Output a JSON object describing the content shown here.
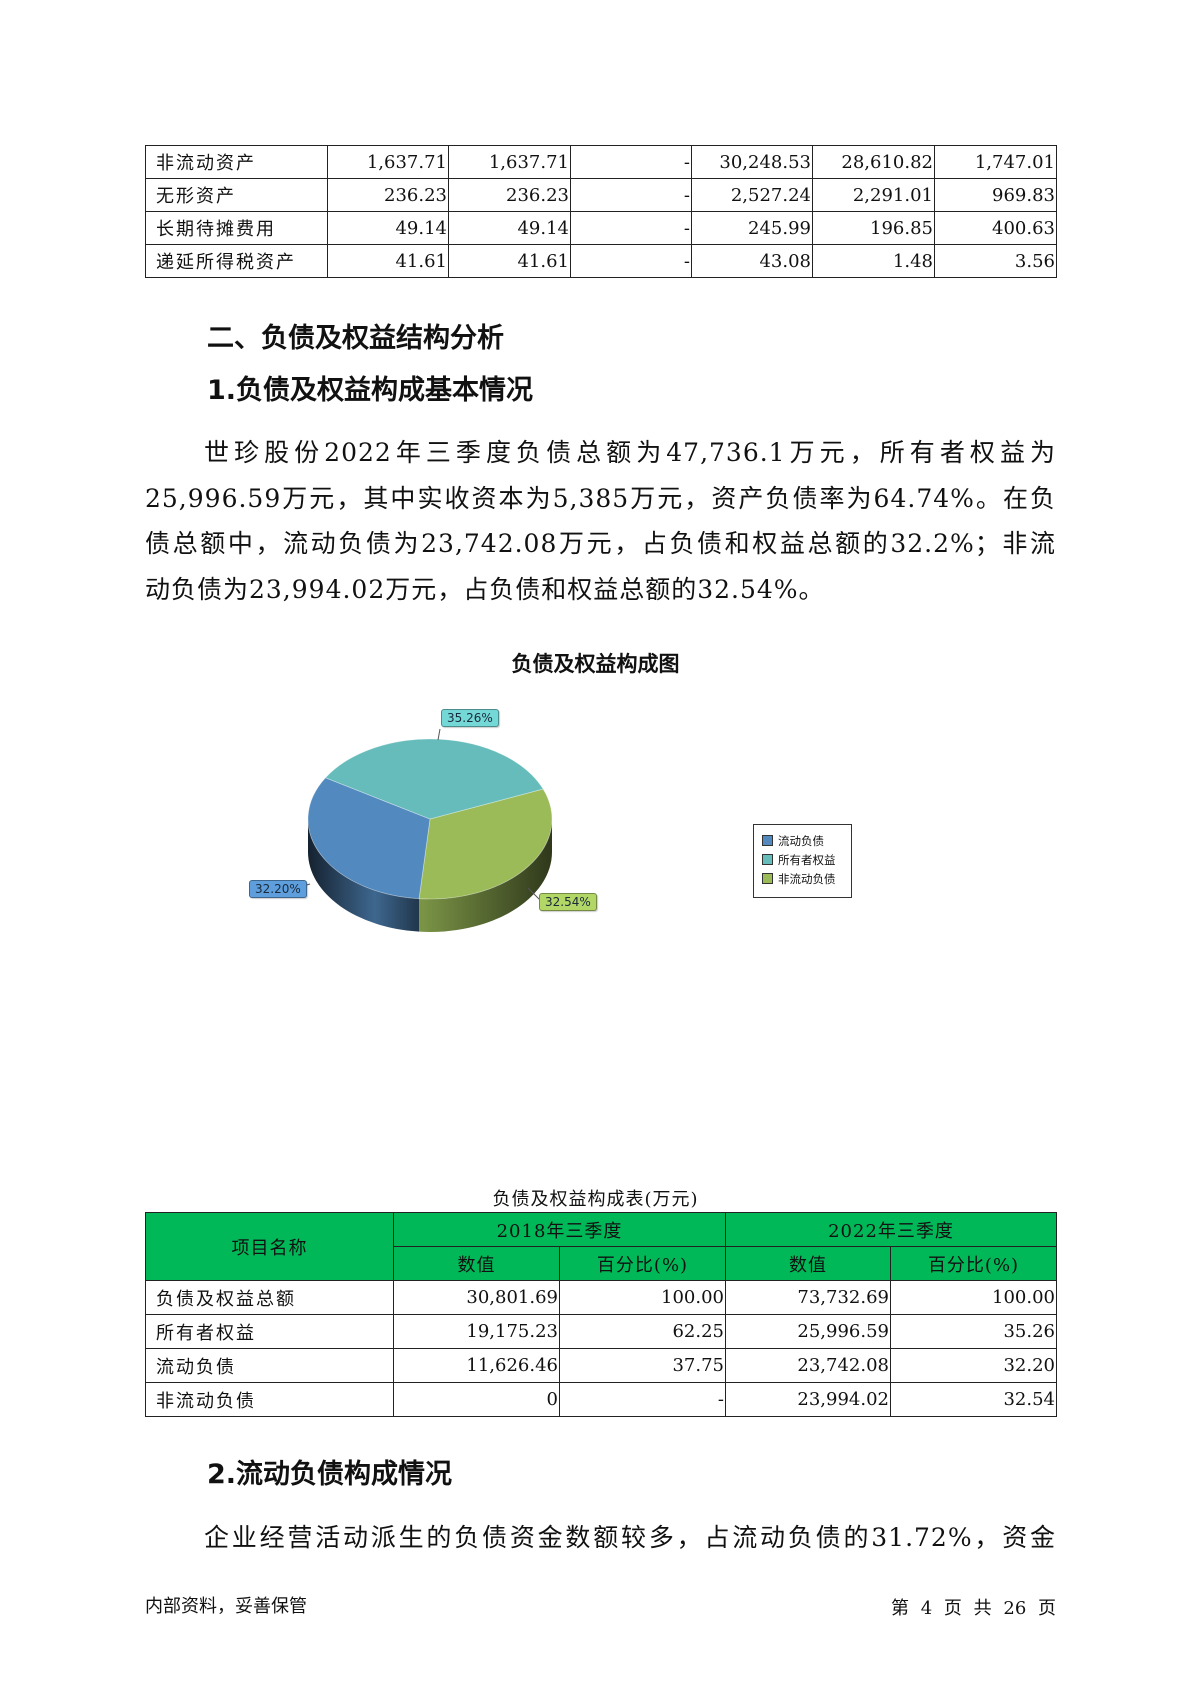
{
  "asset_table": {
    "rows": [
      {
        "name": "非流动资产",
        "values": [
          "1,637.71",
          "1,637.71",
          "-",
          "30,248.53",
          "28,610.82",
          "1,747.01"
        ]
      },
      {
        "name": "无形资产",
        "values": [
          "236.23",
          "236.23",
          "-",
          "2,527.24",
          "2,291.01",
          "969.83"
        ]
      },
      {
        "name": "长期待摊费用",
        "values": [
          "49.14",
          "49.14",
          "-",
          "245.99",
          "196.85",
          "400.63"
        ]
      },
      {
        "name": "递延所得税资产",
        "values": [
          "41.61",
          "41.61",
          "-",
          "43.08",
          "1.48",
          "3.56"
        ]
      }
    ]
  },
  "section_heading": "二、负债及权益结构分析",
  "sub_heading_1": "1.负债及权益构成基本情况",
  "paragraph_1_lines": [
    "世珍股份2022年三季度负债总额为47,736.1万元，所有者权益为",
    "25,996.59万元，其中实收资本为5,385万元，资产负债率为64.74%。在负",
    "债总额中，流动负债为23,742.08万元，占负债和权益总额的32.2%；非流",
    "动负债为23,994.02万元，占负债和权益总额的32.54%。"
  ],
  "chart_data": {
    "type": "pie",
    "title": "负债及权益构成图",
    "style": "3d",
    "legend_position": "right",
    "slices": [
      {
        "name": "流动负债",
        "value": 32.2,
        "label": "32.20%",
        "color": "#5289bf"
      },
      {
        "name": "所有者权益",
        "value": 35.26,
        "label": "35.26%",
        "color": "#65bcbb"
      },
      {
        "name": "非流动负债",
        "value": 32.54,
        "label": "32.54%",
        "color": "#9bbb59"
      }
    ]
  },
  "liability_table": {
    "caption": "负债及权益构成表(万元)",
    "header_item": "项目名称",
    "periods": [
      "2018年三季度",
      "2022年三季度"
    ],
    "sub_headers": [
      "数值",
      "百分比(%)",
      "数值",
      "百分比(%)"
    ],
    "header_color": "#00b858",
    "rows": [
      {
        "name": "负债及权益总额",
        "values": [
          "30,801.69",
          "100.00",
          "73,732.69",
          "100.00"
        ]
      },
      {
        "name": "所有者权益",
        "values": [
          "19,175.23",
          "62.25",
          "25,996.59",
          "35.26"
        ]
      },
      {
        "name": "流动负债",
        "values": [
          "11,626.46",
          "37.75",
          "23,742.08",
          "32.20"
        ]
      },
      {
        "name": "非流动负债",
        "values": [
          "0",
          "-",
          "23,994.02",
          "32.54"
        ]
      }
    ]
  },
  "sub_heading_2": "2.流动负债构成情况",
  "paragraph_2_lines": [
    "企业经营活动派生的负债资金数额较多，占流动负债的31.72%，资金"
  ],
  "footer": {
    "left": "内部资料，妥善保管",
    "page": "第 4 页  共 26 页"
  }
}
